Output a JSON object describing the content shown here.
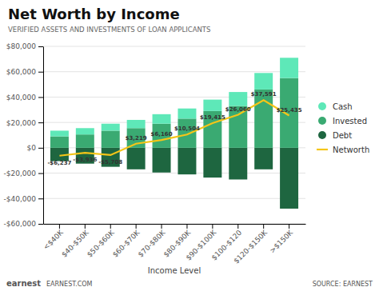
{
  "chart_data": {
    "type": "bar",
    "title": "Net Worth by Income",
    "subtitle": "VERIFIED ASSETS AND INVESTMENTS OF LOAN APPLICANTS",
    "xlabel": "Income Level",
    "annotations": [
      "earnest",
      "EARNEST.COM",
      "SOURCE: EARNEST"
    ],
    "categories": [
      "<$40K",
      "$40-$50K",
      "$50-$60K",
      "$60-$70K",
      "$70-$80K",
      "$80-$90K",
      "$90-$100K",
      "$100-$120",
      "$120-$150K",
      ">$150K"
    ],
    "series": [
      {
        "name": "Cash",
        "color": "#5ee8b8",
        "values": [
          4500,
          5000,
          5500,
          6500,
          7500,
          8000,
          9000,
          11000,
          13000,
          16000
        ]
      },
      {
        "name": "Invested",
        "color": "#3aaa72",
        "values": [
          9000,
          10500,
          13500,
          15500,
          19000,
          23000,
          29000,
          33000,
          46000,
          55000
        ]
      },
      {
        "name": "Debt",
        "color": "#1e6640",
        "values": [
          -10500,
          -12500,
          -15000,
          -17000,
          -19500,
          -21000,
          -23500,
          -25000,
          -17000,
          -48000
        ]
      },
      {
        "name": "Networth",
        "type": "line",
        "color": "#f5c518",
        "data_labels": true,
        "values": [
          -6237,
          -3936,
          -5708,
          3219,
          6160,
          10504,
          19415,
          26060,
          37591,
          25435
        ],
        "value_labels": [
          "-$6,237",
          "-$3,936",
          "-$5,708",
          "$3,219",
          "$6,160",
          "$10,504",
          "$19,415",
          "$26,060",
          "$37,591",
          "$25,435"
        ]
      }
    ],
    "stacked": true,
    "ylim": [
      -60000,
      80000
    ],
    "yticks": [
      {
        "value": -60000,
        "label": "-$60,000"
      },
      {
        "value": -40000,
        "label": "-$40,000"
      },
      {
        "value": -20000,
        "label": "-$20,000"
      },
      {
        "value": 0,
        "label": "$0"
      },
      {
        "value": 20000,
        "label": "$20,000"
      },
      {
        "value": 40000,
        "label": "$40,000"
      },
      {
        "value": 60000,
        "label": "$60,000"
      },
      {
        "value": 80000,
        "label": "$80,000"
      }
    ],
    "grid": true,
    "legend": "right"
  }
}
